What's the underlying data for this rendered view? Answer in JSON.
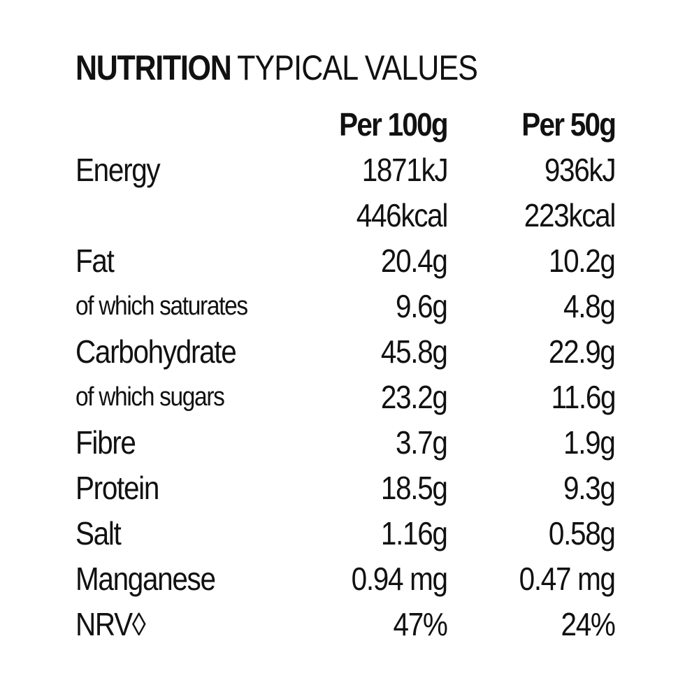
{
  "heading": {
    "bold": "NUTRITION",
    "light": "TYPICAL VALUES"
  },
  "columns": [
    "Per 100g",
    "Per 50g"
  ],
  "rows": [
    {
      "label": "Energy",
      "per100": "1871kJ",
      "per50": "936kJ",
      "style": "main"
    },
    {
      "label": "",
      "per100": "446kcal",
      "per50": "223kcal",
      "style": "main"
    },
    {
      "label": "Fat",
      "per100": "20.4g",
      "per50": "10.2g",
      "style": "main"
    },
    {
      "label": "of which saturates",
      "per100": "9.6g",
      "per50": "4.8g",
      "style": "sub"
    },
    {
      "label": "Carbohydrate",
      "per100": "45.8g",
      "per50": "22.9g",
      "style": "main"
    },
    {
      "label": "of which sugars",
      "per100": "23.2g",
      "per50": "11.6g",
      "style": "sub"
    },
    {
      "label": "Fibre",
      "per100": "3.7g",
      "per50": "1.9g",
      "style": "main"
    },
    {
      "label": "Protein",
      "per100": "18.5g",
      "per50": "9.3g",
      "style": "main"
    },
    {
      "label": "Salt",
      "per100": "1.16g",
      "per50": "0.58g",
      "style": "main"
    },
    {
      "label": "Manganese",
      "per100": "0.94 mg",
      "per50": "0.47 mg",
      "style": "main"
    },
    {
      "label": "NRV◊",
      "per100": "47%",
      "per50": "24%",
      "style": "main"
    }
  ]
}
